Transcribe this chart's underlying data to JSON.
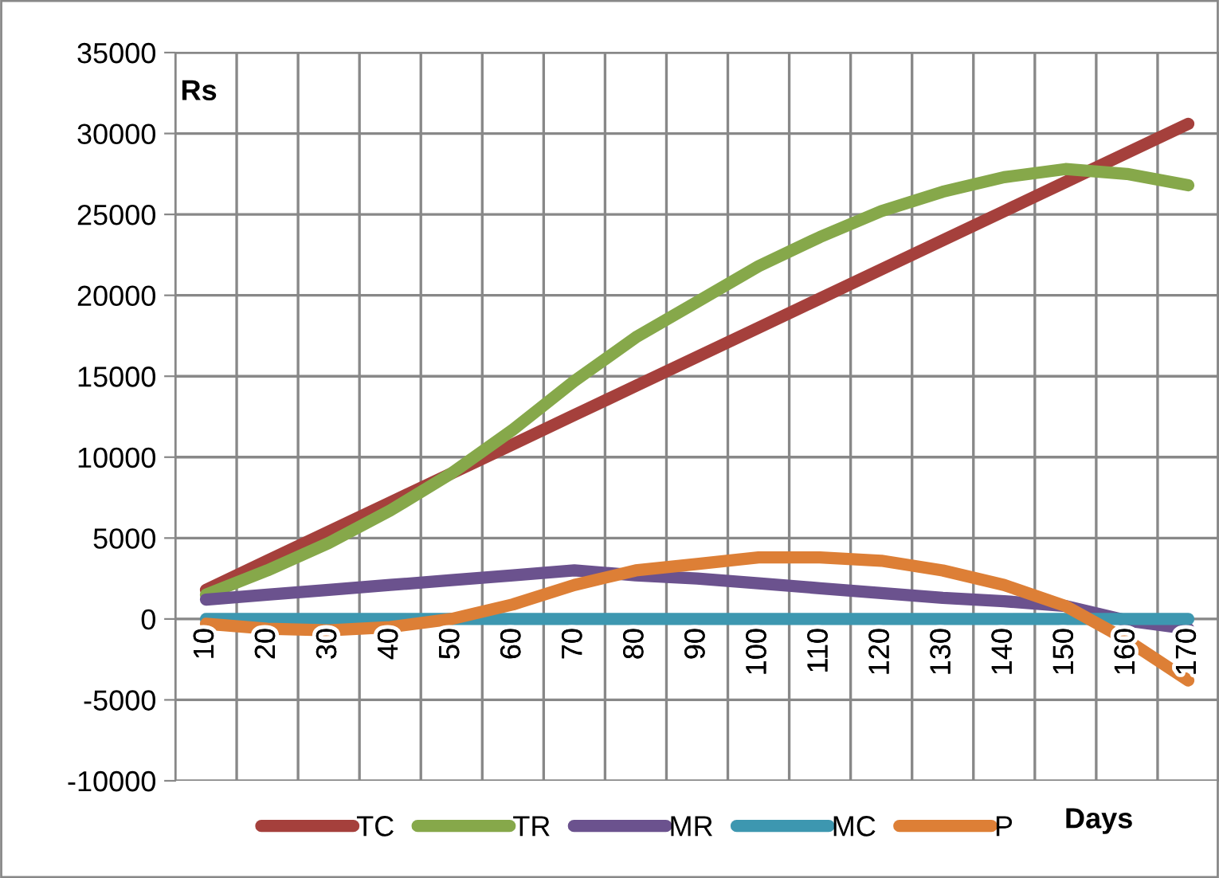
{
  "chart_data": {
    "type": "line",
    "ylabel": "Rs",
    "xlabel": "Days",
    "categories": [
      "10",
      "20",
      "30",
      "40",
      "50",
      "60",
      "70",
      "80",
      "90",
      "100",
      "110",
      "120",
      "130",
      "140",
      "150",
      "160",
      "170"
    ],
    "series": [
      {
        "name": "TC",
        "color": "#a5403c",
        "values": [
          1800,
          3600,
          5400,
          7200,
          9000,
          10800,
          12600,
          14400,
          16200,
          18000,
          19800,
          21600,
          23400,
          25200,
          27000,
          28800,
          30600
        ]
      },
      {
        "name": "TR",
        "color": "#86a84a",
        "values": [
          1500,
          3000,
          4700,
          6700,
          9000,
          11700,
          14700,
          17400,
          19600,
          21800,
          23600,
          25200,
          26400,
          27300,
          27800,
          27500,
          26800
        ]
      },
      {
        "name": "MR",
        "color": "#6b528e",
        "values": [
          1200,
          1500,
          1800,
          2100,
          2400,
          2700,
          3000,
          2700,
          2500,
          2200,
          1900,
          1600,
          1300,
          1100,
          800,
          -100,
          -600
        ]
      },
      {
        "name": "MC",
        "color": "#3d97b0",
        "values": [
          0,
          0,
          0,
          0,
          0,
          0,
          0,
          0,
          0,
          0,
          0,
          0,
          0,
          0,
          0,
          0,
          0
        ]
      },
      {
        "name": "P",
        "color": "#dd7f36",
        "values": [
          -300,
          -600,
          -700,
          -500,
          0,
          900,
          2100,
          3000,
          3400,
          3800,
          3800,
          3600,
          3000,
          2100,
          800,
          -1300,
          -3800
        ]
      }
    ],
    "ylim": [
      -10000,
      35000
    ],
    "yticks": [
      -10000,
      -5000,
      0,
      5000,
      10000,
      15000,
      20000,
      25000,
      30000,
      35000
    ],
    "grid": true,
    "legend": "bottom",
    "marker": "none",
    "line_style": "solid"
  }
}
